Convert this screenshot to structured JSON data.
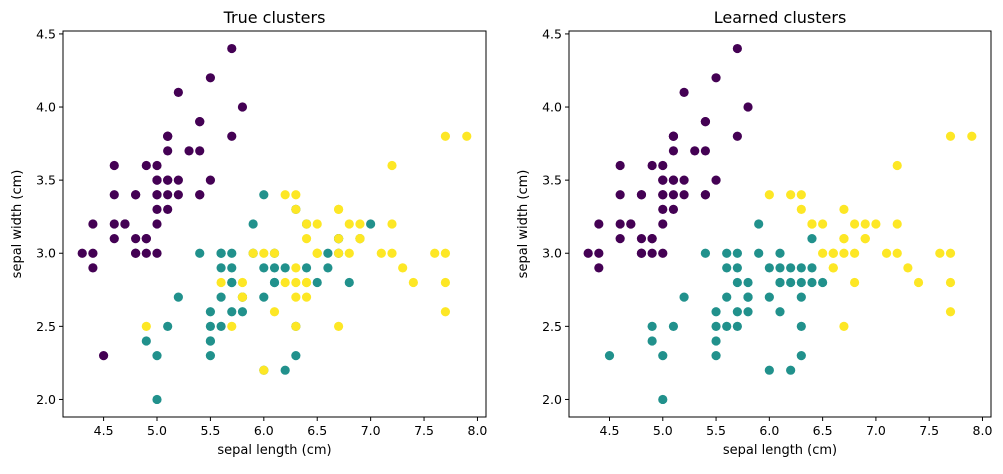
{
  "chart_data": [
    {
      "type": "scatter",
      "title": "True clusters",
      "xlabel": "sepal length (cm)",
      "ylabel": "sepal width (cm)",
      "xlim": [
        4.12,
        8.08
      ],
      "ylim": [
        1.88,
        4.52
      ],
      "xticks": [
        "4.5",
        "5.0",
        "5.5",
        "6.0",
        "6.5",
        "7.0",
        "7.5",
        "8.0"
      ],
      "yticks": [
        "2.0",
        "2.5",
        "3.0",
        "3.5",
        "4.0",
        "4.5"
      ],
      "grid": false,
      "colors": {
        "0": "#440154",
        "1": "#21918c",
        "2": "#fde725"
      },
      "points": [
        [
          5.1,
          3.5,
          0
        ],
        [
          4.9,
          3.0,
          0
        ],
        [
          4.7,
          3.2,
          0
        ],
        [
          4.6,
          3.1,
          0
        ],
        [
          5.0,
          3.6,
          0
        ],
        [
          5.4,
          3.9,
          0
        ],
        [
          4.6,
          3.4,
          0
        ],
        [
          5.0,
          3.4,
          0
        ],
        [
          4.4,
          2.9,
          0
        ],
        [
          4.9,
          3.1,
          0
        ],
        [
          5.4,
          3.7,
          0
        ],
        [
          4.8,
          3.4,
          0
        ],
        [
          4.8,
          3.0,
          0
        ],
        [
          4.3,
          3.0,
          0
        ],
        [
          5.8,
          4.0,
          0
        ],
        [
          5.7,
          4.4,
          0
        ],
        [
          5.4,
          3.9,
          0
        ],
        [
          5.1,
          3.5,
          0
        ],
        [
          5.7,
          3.8,
          0
        ],
        [
          5.1,
          3.8,
          0
        ],
        [
          5.4,
          3.4,
          0
        ],
        [
          5.1,
          3.7,
          0
        ],
        [
          4.6,
          3.6,
          0
        ],
        [
          5.1,
          3.3,
          0
        ],
        [
          4.8,
          3.4,
          0
        ],
        [
          5.0,
          3.0,
          0
        ],
        [
          5.0,
          3.4,
          0
        ],
        [
          5.2,
          3.5,
          0
        ],
        [
          5.2,
          3.4,
          0
        ],
        [
          4.7,
          3.2,
          0
        ],
        [
          4.8,
          3.1,
          0
        ],
        [
          5.4,
          3.4,
          0
        ],
        [
          5.2,
          4.1,
          0
        ],
        [
          5.5,
          4.2,
          0
        ],
        [
          4.9,
          3.1,
          0
        ],
        [
          5.0,
          3.2,
          0
        ],
        [
          5.5,
          3.5,
          0
        ],
        [
          4.9,
          3.6,
          0
        ],
        [
          4.4,
          3.0,
          0
        ],
        [
          5.1,
          3.4,
          0
        ],
        [
          5.0,
          3.5,
          0
        ],
        [
          4.5,
          2.3,
          0
        ],
        [
          4.4,
          3.2,
          0
        ],
        [
          5.0,
          3.5,
          0
        ],
        [
          5.1,
          3.8,
          0
        ],
        [
          4.8,
          3.0,
          0
        ],
        [
          5.1,
          3.8,
          0
        ],
        [
          4.6,
          3.2,
          0
        ],
        [
          5.3,
          3.7,
          0
        ],
        [
          5.0,
          3.3,
          0
        ],
        [
          7.0,
          3.2,
          1
        ],
        [
          6.4,
          3.2,
          1
        ],
        [
          6.9,
          3.1,
          1
        ],
        [
          5.5,
          2.3,
          1
        ],
        [
          6.5,
          2.8,
          1
        ],
        [
          5.7,
          2.8,
          1
        ],
        [
          6.3,
          3.3,
          1
        ],
        [
          4.9,
          2.4,
          1
        ],
        [
          6.6,
          2.9,
          1
        ],
        [
          5.2,
          2.7,
          1
        ],
        [
          5.0,
          2.0,
          1
        ],
        [
          5.9,
          3.0,
          1
        ],
        [
          6.0,
          2.2,
          1
        ],
        [
          6.1,
          2.9,
          1
        ],
        [
          5.6,
          2.9,
          1
        ],
        [
          6.7,
          3.1,
          1
        ],
        [
          5.6,
          3.0,
          1
        ],
        [
          5.8,
          2.7,
          1
        ],
        [
          6.2,
          2.2,
          1
        ],
        [
          5.6,
          2.5,
          1
        ],
        [
          5.9,
          3.2,
          1
        ],
        [
          6.1,
          2.8,
          1
        ],
        [
          6.3,
          2.5,
          1
        ],
        [
          6.1,
          2.8,
          1
        ],
        [
          6.4,
          2.9,
          1
        ],
        [
          6.6,
          3.0,
          1
        ],
        [
          6.8,
          2.8,
          1
        ],
        [
          6.7,
          3.0,
          1
        ],
        [
          6.0,
          2.9,
          1
        ],
        [
          5.7,
          2.6,
          1
        ],
        [
          5.5,
          2.4,
          1
        ],
        [
          5.5,
          2.4,
          1
        ],
        [
          5.8,
          2.7,
          1
        ],
        [
          6.0,
          2.7,
          1
        ],
        [
          5.4,
          3.0,
          1
        ],
        [
          6.0,
          3.4,
          1
        ],
        [
          6.7,
          3.1,
          1
        ],
        [
          6.3,
          2.3,
          1
        ],
        [
          5.6,
          3.0,
          1
        ],
        [
          5.5,
          2.5,
          1
        ],
        [
          5.5,
          2.6,
          1
        ],
        [
          6.1,
          3.0,
          1
        ],
        [
          5.8,
          2.6,
          1
        ],
        [
          5.0,
          2.3,
          1
        ],
        [
          5.6,
          2.7,
          1
        ],
        [
          5.7,
          3.0,
          1
        ],
        [
          5.7,
          2.9,
          1
        ],
        [
          6.2,
          2.9,
          1
        ],
        [
          5.1,
          2.5,
          1
        ],
        [
          5.7,
          2.8,
          1
        ],
        [
          6.3,
          3.3,
          2
        ],
        [
          5.8,
          2.7,
          2
        ],
        [
          7.1,
          3.0,
          2
        ],
        [
          6.3,
          2.9,
          2
        ],
        [
          6.5,
          3.0,
          2
        ],
        [
          7.6,
          3.0,
          2
        ],
        [
          4.9,
          2.5,
          2
        ],
        [
          7.3,
          2.9,
          2
        ],
        [
          6.7,
          2.5,
          2
        ],
        [
          7.2,
          3.6,
          2
        ],
        [
          6.5,
          3.2,
          2
        ],
        [
          6.4,
          2.7,
          2
        ],
        [
          6.8,
          3.0,
          2
        ],
        [
          5.7,
          2.5,
          2
        ],
        [
          5.8,
          2.8,
          2
        ],
        [
          6.4,
          3.2,
          2
        ],
        [
          6.5,
          3.0,
          2
        ],
        [
          7.7,
          3.8,
          2
        ],
        [
          7.7,
          2.6,
          2
        ],
        [
          6.0,
          2.2,
          2
        ],
        [
          6.9,
          3.2,
          2
        ],
        [
          5.6,
          2.8,
          2
        ],
        [
          7.7,
          2.8,
          2
        ],
        [
          6.3,
          2.7,
          2
        ],
        [
          6.7,
          3.3,
          2
        ],
        [
          7.2,
          3.2,
          2
        ],
        [
          6.2,
          2.8,
          2
        ],
        [
          6.1,
          3.0,
          2
        ],
        [
          6.4,
          2.8,
          2
        ],
        [
          7.2,
          3.0,
          2
        ],
        [
          7.4,
          2.8,
          2
        ],
        [
          7.9,
          3.8,
          2
        ],
        [
          6.4,
          2.8,
          2
        ],
        [
          6.3,
          2.8,
          2
        ],
        [
          6.1,
          2.6,
          2
        ],
        [
          7.7,
          3.0,
          2
        ],
        [
          6.3,
          3.4,
          2
        ],
        [
          6.4,
          3.1,
          2
        ],
        [
          6.0,
          3.0,
          2
        ],
        [
          6.9,
          3.1,
          2
        ],
        [
          6.7,
          3.1,
          2
        ],
        [
          6.9,
          3.1,
          2
        ],
        [
          5.8,
          2.7,
          2
        ],
        [
          6.8,
          3.2,
          2
        ],
        [
          6.7,
          3.3,
          2
        ],
        [
          6.7,
          3.0,
          2
        ],
        [
          6.3,
          2.5,
          2
        ],
        [
          6.5,
          3.0,
          2
        ],
        [
          6.2,
          3.4,
          2
        ],
        [
          5.9,
          3.0,
          2
        ]
      ]
    },
    {
      "type": "scatter",
      "title": "Learned clusters",
      "xlabel": "sepal length (cm)",
      "ylabel": "sepal width (cm)",
      "xlim": [
        4.12,
        8.08
      ],
      "ylim": [
        1.88,
        4.52
      ],
      "xticks": [
        "4.5",
        "5.0",
        "5.5",
        "6.0",
        "6.5",
        "7.0",
        "7.5",
        "8.0"
      ],
      "yticks": [
        "2.0",
        "2.5",
        "3.0",
        "3.5",
        "4.0",
        "4.5"
      ],
      "grid": false,
      "colors": {
        "0": "#440154",
        "1": "#21918c",
        "2": "#fde725"
      },
      "points": [
        [
          5.1,
          3.5,
          0
        ],
        [
          4.9,
          3.0,
          0
        ],
        [
          4.7,
          3.2,
          0
        ],
        [
          4.6,
          3.1,
          0
        ],
        [
          5.0,
          3.6,
          0
        ],
        [
          5.4,
          3.9,
          0
        ],
        [
          4.6,
          3.4,
          0
        ],
        [
          5.0,
          3.4,
          0
        ],
        [
          4.4,
          2.9,
          0
        ],
        [
          4.9,
          3.1,
          0
        ],
        [
          5.4,
          3.7,
          0
        ],
        [
          4.8,
          3.4,
          0
        ],
        [
          4.8,
          3.0,
          0
        ],
        [
          4.3,
          3.0,
          0
        ],
        [
          5.8,
          4.0,
          0
        ],
        [
          5.7,
          4.4,
          0
        ],
        [
          5.4,
          3.9,
          0
        ],
        [
          5.1,
          3.5,
          0
        ],
        [
          5.7,
          3.8,
          0
        ],
        [
          5.1,
          3.8,
          0
        ],
        [
          5.4,
          3.4,
          0
        ],
        [
          5.1,
          3.7,
          0
        ],
        [
          4.6,
          3.6,
          0
        ],
        [
          5.1,
          3.3,
          0
        ],
        [
          4.8,
          3.4,
          0
        ],
        [
          5.0,
          3.0,
          0
        ],
        [
          5.0,
          3.4,
          0
        ],
        [
          5.2,
          3.5,
          0
        ],
        [
          5.2,
          3.4,
          0
        ],
        [
          4.7,
          3.2,
          0
        ],
        [
          4.8,
          3.1,
          0
        ],
        [
          5.4,
          3.4,
          0
        ],
        [
          5.2,
          4.1,
          0
        ],
        [
          5.5,
          4.2,
          0
        ],
        [
          4.9,
          3.1,
          0
        ],
        [
          5.0,
          3.2,
          0
        ],
        [
          5.5,
          3.5,
          0
        ],
        [
          4.9,
          3.6,
          0
        ],
        [
          4.4,
          3.0,
          0
        ],
        [
          5.1,
          3.4,
          0
        ],
        [
          5.0,
          3.5,
          0
        ],
        [
          4.4,
          3.2,
          0
        ],
        [
          5.0,
          3.5,
          0
        ],
        [
          5.1,
          3.8,
          0
        ],
        [
          4.8,
          3.0,
          0
        ],
        [
          5.1,
          3.8,
          0
        ],
        [
          4.6,
          3.2,
          0
        ],
        [
          5.3,
          3.7,
          0
        ],
        [
          5.0,
          3.3,
          0
        ],
        [
          4.5,
          2.3,
          1
        ],
        [
          5.5,
          2.3,
          1
        ],
        [
          5.7,
          2.8,
          1
        ],
        [
          4.9,
          2.4,
          1
        ],
        [
          5.2,
          2.7,
          1
        ],
        [
          5.0,
          2.0,
          1
        ],
        [
          5.9,
          3.0,
          1
        ],
        [
          6.0,
          2.2,
          1
        ],
        [
          6.1,
          2.9,
          1
        ],
        [
          5.6,
          2.9,
          1
        ],
        [
          5.6,
          3.0,
          1
        ],
        [
          5.8,
          2.7,
          1
        ],
        [
          6.2,
          2.2,
          1
        ],
        [
          5.6,
          2.5,
          1
        ],
        [
          5.9,
          3.2,
          1
        ],
        [
          6.1,
          2.8,
          1
        ],
        [
          6.3,
          2.5,
          1
        ],
        [
          6.4,
          2.9,
          1
        ],
        [
          6.0,
          2.9,
          1
        ],
        [
          5.7,
          2.6,
          1
        ],
        [
          5.5,
          2.4,
          1
        ],
        [
          5.8,
          2.7,
          1
        ],
        [
          6.0,
          2.7,
          1
        ],
        [
          5.4,
          3.0,
          1
        ],
        [
          6.3,
          2.3,
          1
        ],
        [
          5.5,
          2.5,
          1
        ],
        [
          5.5,
          2.6,
          1
        ],
        [
          6.1,
          3.0,
          1
        ],
        [
          5.8,
          2.6,
          1
        ],
        [
          5.0,
          2.3,
          1
        ],
        [
          5.6,
          2.7,
          1
        ],
        [
          5.7,
          3.0,
          1
        ],
        [
          5.7,
          2.9,
          1
        ],
        [
          6.2,
          2.9,
          1
        ],
        [
          5.1,
          2.5,
          1
        ],
        [
          5.8,
          2.8,
          1
        ],
        [
          4.9,
          2.5,
          1
        ],
        [
          5.7,
          2.5,
          1
        ],
        [
          6.3,
          2.7,
          1
        ],
        [
          6.2,
          2.8,
          1
        ],
        [
          6.4,
          2.8,
          1
        ],
        [
          6.3,
          2.8,
          1
        ],
        [
          6.1,
          2.6,
          1
        ],
        [
          6.3,
          2.9,
          1
        ],
        [
          6.4,
          3.1,
          1
        ],
        [
          6.5,
          2.8,
          1
        ],
        [
          6.1,
          2.8,
          1
        ],
        [
          7.0,
          3.2,
          2
        ],
        [
          6.4,
          3.2,
          2
        ],
        [
          6.9,
          3.1,
          2
        ],
        [
          6.6,
          2.9,
          2
        ],
        [
          6.7,
          3.1,
          2
        ],
        [
          6.6,
          3.0,
          2
        ],
        [
          6.8,
          2.8,
          2
        ],
        [
          6.7,
          3.0,
          2
        ],
        [
          6.0,
          3.4,
          2
        ],
        [
          6.7,
          3.1,
          2
        ],
        [
          6.3,
          3.3,
          2
        ],
        [
          7.1,
          3.0,
          2
        ],
        [
          6.5,
          3.0,
          2
        ],
        [
          7.6,
          3.0,
          2
        ],
        [
          7.3,
          2.9,
          2
        ],
        [
          6.7,
          2.5,
          2
        ],
        [
          7.2,
          3.6,
          2
        ],
        [
          6.5,
          3.2,
          2
        ],
        [
          6.8,
          3.0,
          2
        ],
        [
          6.4,
          3.2,
          2
        ],
        [
          7.7,
          3.8,
          2
        ],
        [
          7.7,
          2.6,
          2
        ],
        [
          6.9,
          3.2,
          2
        ],
        [
          7.7,
          2.8,
          2
        ],
        [
          6.7,
          3.3,
          2
        ],
        [
          7.2,
          3.2,
          2
        ],
        [
          7.2,
          3.0,
          2
        ],
        [
          7.4,
          2.8,
          2
        ],
        [
          7.9,
          3.8,
          2
        ],
        [
          7.7,
          3.0,
          2
        ],
        [
          6.3,
          3.4,
          2
        ],
        [
          6.9,
          3.1,
          2
        ],
        [
          6.8,
          3.2,
          2
        ],
        [
          6.2,
          3.4,
          2
        ],
        [
          6.6,
          3.0,
          2
        ],
        [
          6.6,
          2.9,
          2
        ]
      ]
    }
  ]
}
